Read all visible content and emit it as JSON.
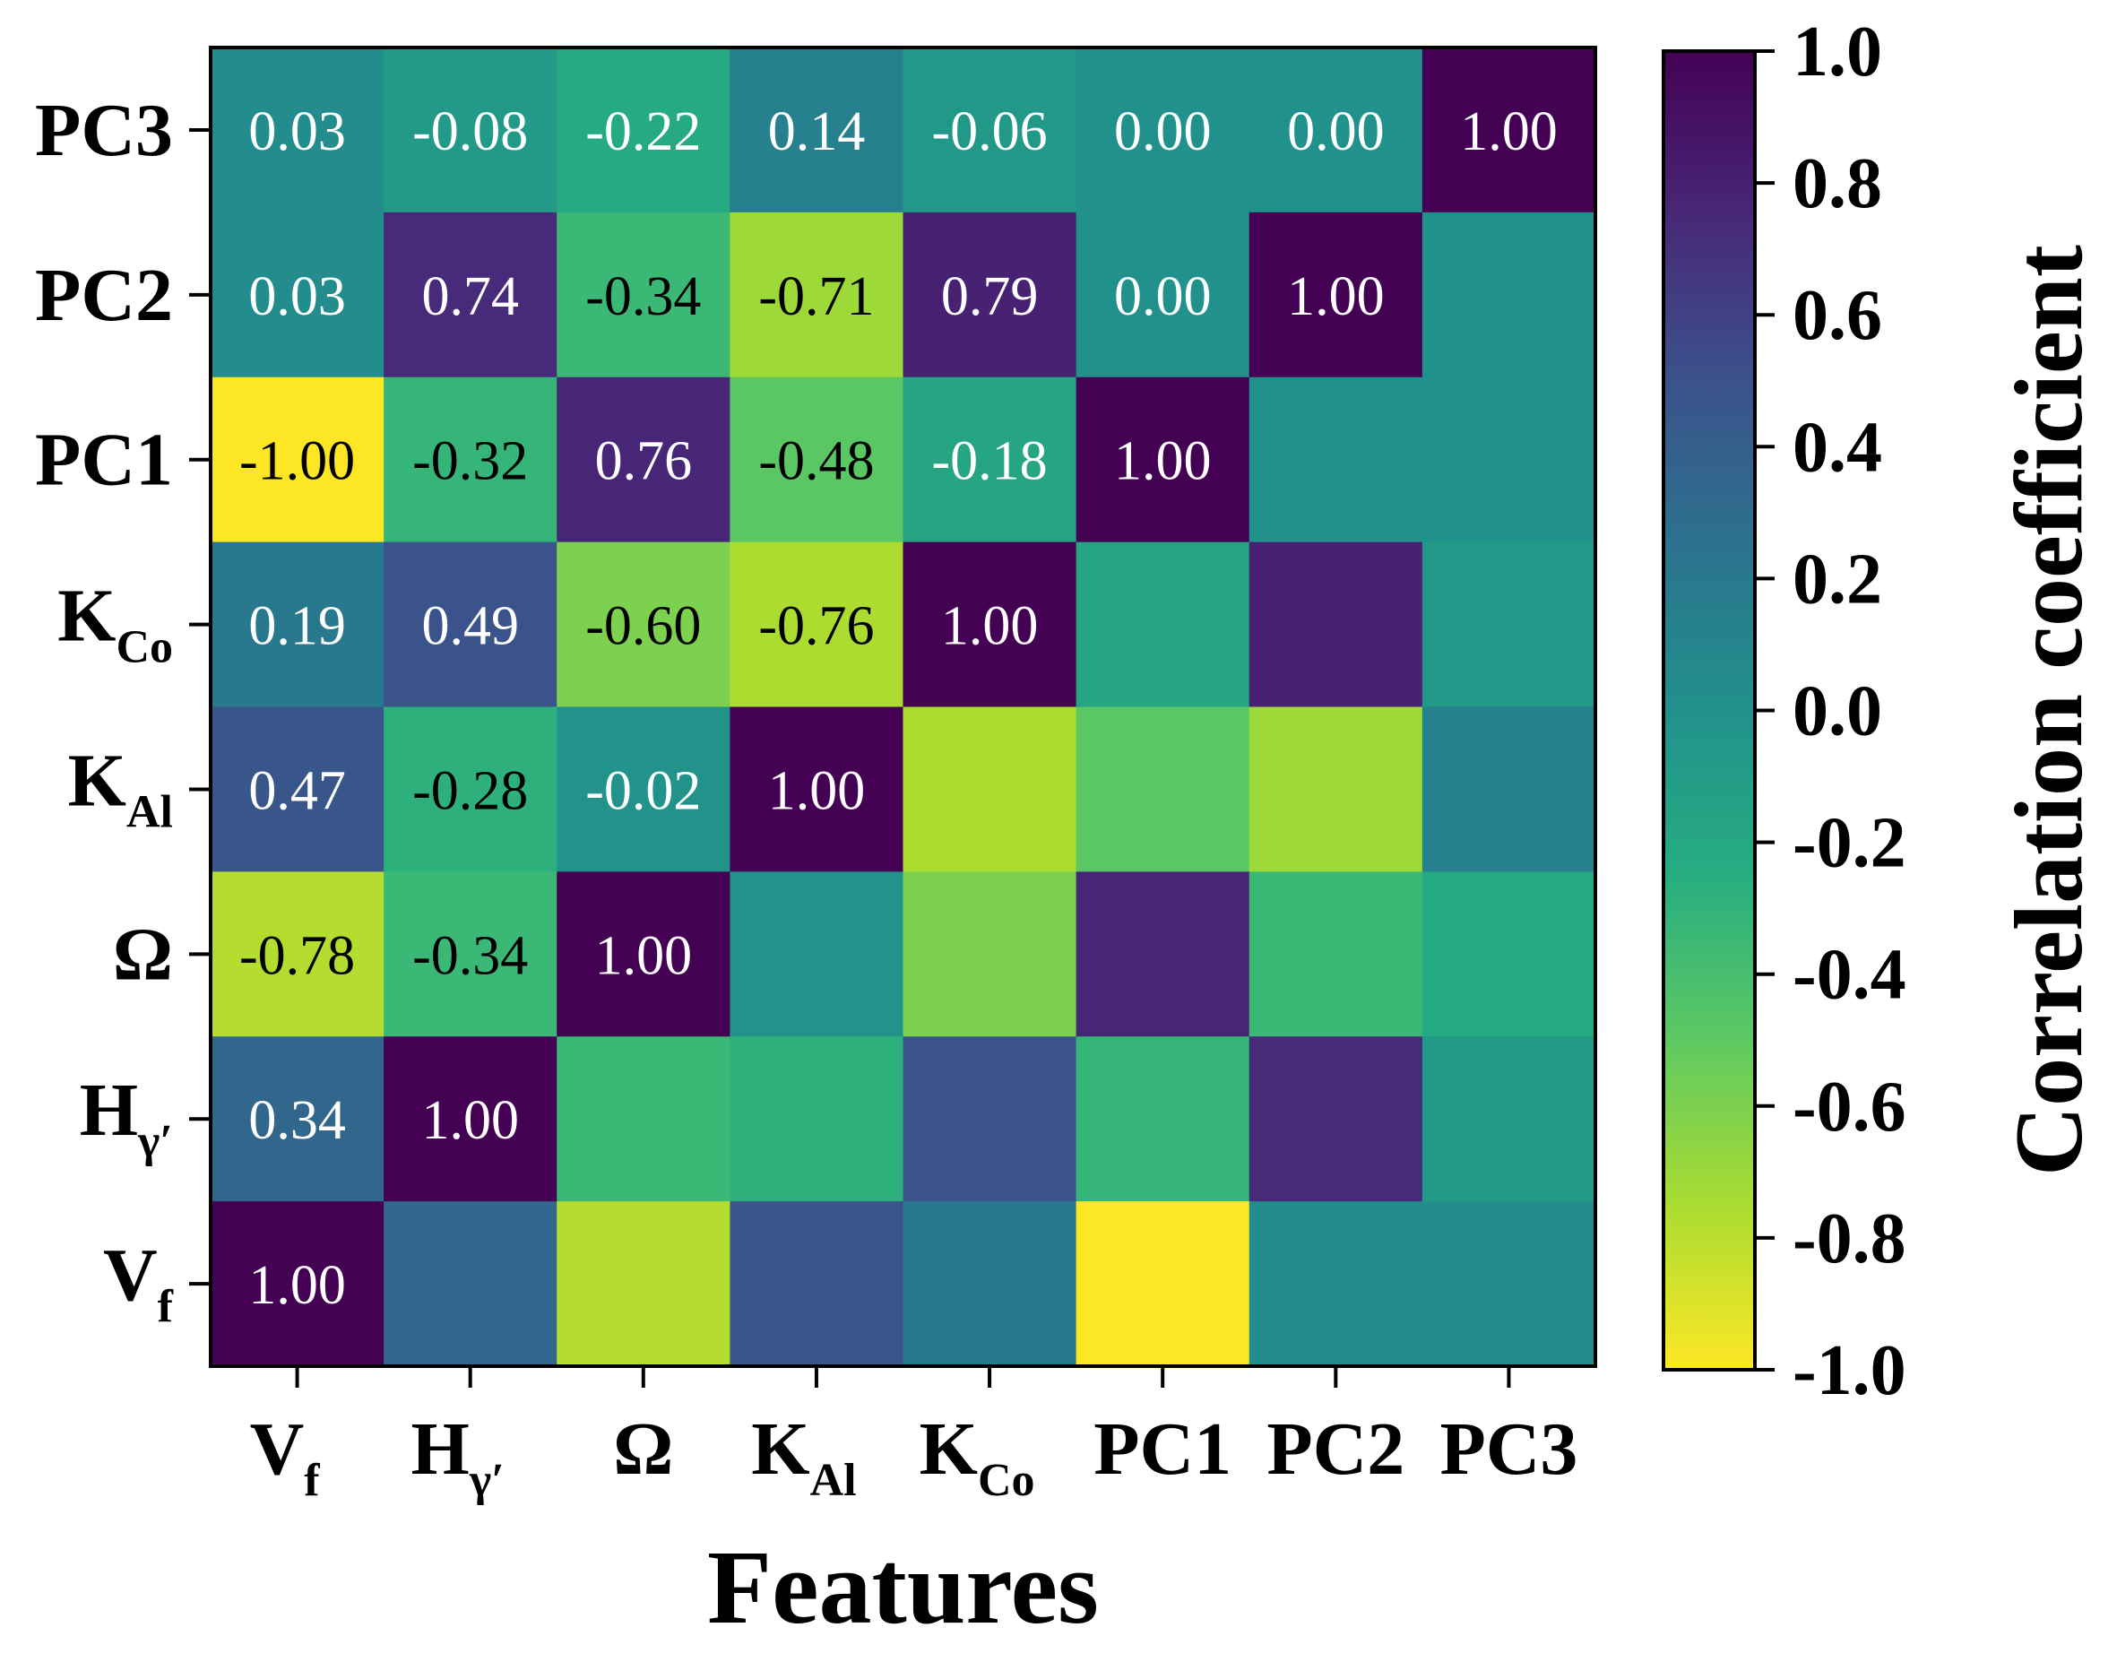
{
  "chart_data": {
    "type": "heatmap",
    "xlabel": "Features",
    "colorbar_label": "Correlation coefficient",
    "features": [
      {
        "base": "V",
        "sub": "f"
      },
      {
        "base": "H",
        "sub": "γ′"
      },
      {
        "base": "Ω",
        "sub": ""
      },
      {
        "base": "K",
        "sub": "Al"
      },
      {
        "base": "K",
        "sub": "Co"
      },
      {
        "base": "PC1",
        "sub": ""
      },
      {
        "base": "PC2",
        "sub": ""
      },
      {
        "base": "PC3",
        "sub": ""
      }
    ],
    "matrix": [
      [
        1.0,
        0.34,
        -0.78,
        0.47,
        0.19,
        -1.0,
        0.03,
        0.03
      ],
      [
        0.34,
        1.0,
        -0.34,
        -0.28,
        0.49,
        -0.32,
        0.74,
        -0.08
      ],
      [
        -0.78,
        -0.34,
        1.0,
        -0.02,
        -0.6,
        0.76,
        -0.34,
        -0.22
      ],
      [
        0.47,
        -0.28,
        -0.02,
        1.0,
        -0.76,
        -0.48,
        -0.71,
        0.14
      ],
      [
        0.19,
        0.49,
        -0.6,
        -0.76,
        1.0,
        -0.18,
        0.79,
        -0.06
      ],
      [
        -1.0,
        -0.32,
        0.76,
        -0.48,
        -0.18,
        1.0,
        0.0,
        0.0
      ],
      [
        0.03,
        0.74,
        -0.34,
        -0.71,
        0.79,
        0.0,
        1.0,
        0.0
      ],
      [
        0.03,
        -0.08,
        -0.22,
        0.14,
        -0.06,
        0.0,
        0.0,
        1.0
      ]
    ],
    "annotate": "lower-triangle",
    "value_format": "0.00",
    "colormap": "viridis_r",
    "vmin": -1.0,
    "vmax": 1.0,
    "colorbar_ticks": [
      "1.0",
      "0.8",
      "0.6",
      "0.4",
      "0.2",
      "0.0",
      "-0.2",
      "-0.4",
      "-0.6",
      "-0.8",
      "-1.0"
    ],
    "grid": false
  }
}
